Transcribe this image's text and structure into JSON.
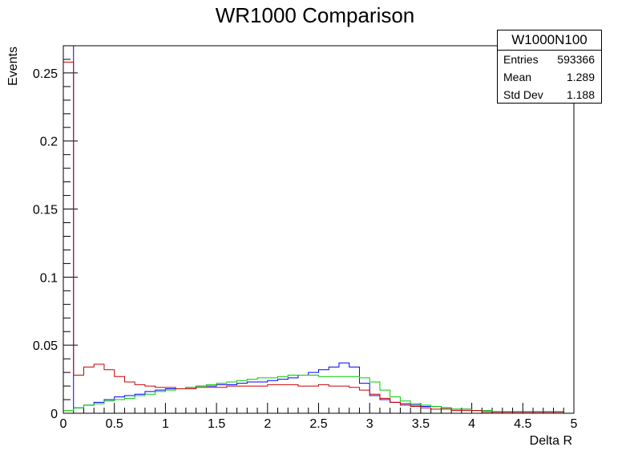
{
  "chart_data": {
    "type": "line",
    "title": "WR1000 Comparison",
    "xlabel": "Delta R",
    "ylabel": "Events",
    "xlim": [
      0,
      5
    ],
    "ylim": [
      0,
      0.27
    ],
    "x_ticks": [
      "0",
      "0.5",
      "1",
      "1.5",
      "2",
      "2.5",
      "3",
      "3.5",
      "4",
      "4.5",
      "5"
    ],
    "y_ticks": [
      "0",
      "0.05",
      "0.1",
      "0.15",
      "0.2",
      "0.25"
    ],
    "bin_width": 0.1,
    "series": [
      {
        "color": "#0000ff",
        "values": [
          0.002,
          0.004,
          0.006,
          0.008,
          0.01,
          0.012,
          0.013,
          0.014,
          0.016,
          0.017,
          0.018,
          0.018,
          0.019,
          0.02,
          0.02,
          0.021,
          0.021,
          0.022,
          0.023,
          0.023,
          0.024,
          0.025,
          0.026,
          0.028,
          0.03,
          0.032,
          0.034,
          0.037,
          0.034,
          0.022,
          0.013,
          0.01,
          0.008,
          0.007,
          0.006,
          0.005,
          0.005,
          0.004,
          0.003,
          0.003,
          0.002,
          0.002,
          0.001,
          0.001,
          0.001,
          0.001,
          0.001,
          0.001,
          0.001,
          0.0
        ],
        "overflow_first_bin": 0.27
      },
      {
        "color": "#00cc00",
        "values": [
          0.002,
          0.004,
          0.006,
          0.007,
          0.009,
          0.01,
          0.011,
          0.013,
          0.014,
          0.016,
          0.017,
          0.018,
          0.019,
          0.02,
          0.021,
          0.022,
          0.023,
          0.024,
          0.025,
          0.026,
          0.026,
          0.027,
          0.028,
          0.028,
          0.028,
          0.027,
          0.027,
          0.027,
          0.027,
          0.026,
          0.023,
          0.017,
          0.012,
          0.009,
          0.007,
          0.006,
          0.005,
          0.004,
          0.003,
          0.003,
          0.002,
          0.002,
          0.001,
          0.001,
          0.001,
          0.001,
          0.001,
          0.001,
          0.001,
          0.0
        ]
      },
      {
        "color": "#cc0000",
        "values": [
          0.017,
          0.028,
          0.034,
          0.036,
          0.032,
          0.027,
          0.023,
          0.021,
          0.02,
          0.019,
          0.019,
          0.018,
          0.018,
          0.019,
          0.019,
          0.019,
          0.02,
          0.02,
          0.02,
          0.02,
          0.021,
          0.021,
          0.021,
          0.02,
          0.02,
          0.021,
          0.02,
          0.02,
          0.019,
          0.017,
          0.014,
          0.011,
          0.008,
          0.006,
          0.005,
          0.004,
          0.003,
          0.003,
          0.002,
          0.002,
          0.002,
          0.001,
          0.001,
          0.001,
          0.001,
          0.001,
          0.001,
          0.001,
          0.001,
          0.0
        ],
        "first_bin_peak": 0.258
      }
    ]
  },
  "stats": {
    "name": "W1000N100",
    "entries_label": "Entries",
    "entries_value": "593366",
    "mean_label": "Mean",
    "mean_value": "1.289",
    "stddev_label": "Std Dev",
    "stddev_value": "1.188"
  }
}
